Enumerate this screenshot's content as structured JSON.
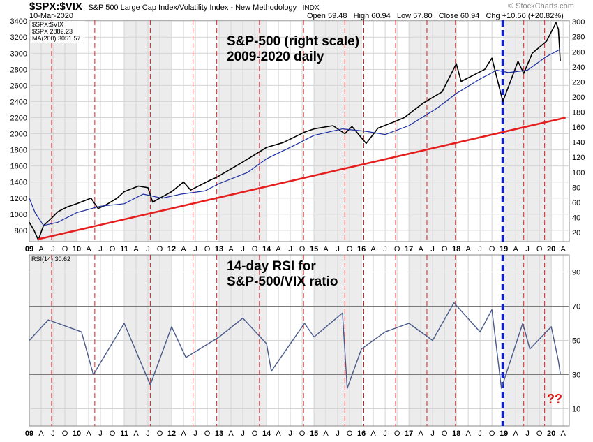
{
  "header": {
    "symbol": "$SPX:$VIX",
    "description": "S&P 500 Large Cap Index/Volatility Index - New Methodology",
    "exchange": "INDX",
    "date": "10-Mar-2020",
    "open_label": "Open",
    "open_value": "59.48",
    "high_label": "High",
    "high_value": "60.94",
    "low_label": "Low",
    "low_value": "57.80",
    "close_label": "Close",
    "close_value": "60.94",
    "chg_label": "Chg",
    "chg_value": "+10.50 (+20.82%)",
    "watermark": "© StockCharts.com"
  },
  "chart_data": [
    {
      "type": "line",
      "panel": "price",
      "legend": [
        {
          "label": "$SPX:$VIX",
          "color": "#000000"
        },
        {
          "label": "$SPX 2882.23",
          "color": "#000000"
        },
        {
          "label": "MA(200) 3051.57",
          "color": "#1a2ea0"
        }
      ],
      "annotations": [
        "S&P-500 (right scale)",
        "2009-2020 daily"
      ],
      "left_axis": {
        "ticks": [
          3400,
          3200,
          3000,
          2800,
          2600,
          2400,
          2200,
          2000,
          1800,
          1600,
          1400,
          1200,
          1000,
          800
        ],
        "range": [
          660,
          3410
        ]
      },
      "right_axis": {
        "ticks": [
          300,
          280,
          260,
          240,
          220,
          200,
          180,
          160,
          140,
          120,
          100,
          80,
          60,
          40,
          20
        ],
        "range": [
          8,
          302
        ]
      },
      "x_labels": [
        "09",
        "A",
        "J",
        "O",
        "10",
        "A",
        "J",
        "O",
        "11",
        "A",
        "J",
        "O",
        "12",
        "A",
        "J",
        "O",
        "13",
        "A",
        "J",
        "O",
        "14",
        "A",
        "J",
        "O",
        "15",
        "A",
        "J",
        "O",
        "16",
        "A",
        "J",
        "O",
        "17",
        "A",
        "J",
        "O",
        "18",
        "A",
        "J",
        "O",
        "19",
        "A",
        "J",
        "O",
        "20",
        "A"
      ],
      "series": [
        {
          "name": "$SPX",
          "color": "#000000",
          "x": [
            2009.0,
            2009.1,
            2009.19,
            2009.3,
            2009.45,
            2009.6,
            2009.8,
            2010.0,
            2010.3,
            2010.45,
            2010.6,
            2010.85,
            2011.0,
            2011.3,
            2011.5,
            2011.6,
            2011.75,
            2012.0,
            2012.25,
            2012.4,
            2012.8,
            2012.95,
            2013.5,
            2014.0,
            2014.35,
            2014.8,
            2015.0,
            2015.4,
            2015.65,
            2015.8,
            2016.1,
            2016.35,
            2016.7,
            2016.9,
            2017.3,
            2017.7,
            2018.0,
            2018.1,
            2018.6,
            2018.75,
            2018.98,
            2019.3,
            2019.42,
            2019.6,
            2019.9,
            2020.1,
            2020.15,
            2020.19
          ],
          "y": [
            900,
            800,
            680,
            860,
            940,
            1030,
            1090,
            1130,
            1200,
            1070,
            1110,
            1200,
            1280,
            1350,
            1330,
            1150,
            1200,
            1280,
            1400,
            1300,
            1420,
            1460,
            1650,
            1830,
            1890,
            2020,
            2060,
            2100,
            2000,
            2090,
            1880,
            2070,
            2150,
            2200,
            2380,
            2520,
            2870,
            2650,
            2800,
            2940,
            2400,
            2900,
            2750,
            3000,
            3150,
            3380,
            3300,
            2900
          ]
        },
        {
          "name": "MA(200)",
          "color": "#1a2ea0",
          "x": [
            2009.0,
            2009.12,
            2009.3,
            2009.6,
            2010.0,
            2010.5,
            2011.0,
            2011.4,
            2011.8,
            2012.2,
            2012.7,
            2013.0,
            2013.6,
            2014.0,
            2014.6,
            2015.0,
            2015.6,
            2016.1,
            2016.5,
            2017.0,
            2017.6,
            2018.0,
            2018.5,
            2018.85,
            2019.1,
            2019.5,
            2019.9,
            2020.19
          ],
          "y": [
            1200,
            1020,
            860,
            900,
            1020,
            1100,
            1130,
            1250,
            1200,
            1250,
            1290,
            1380,
            1520,
            1690,
            1860,
            1980,
            2060,
            2030,
            1990,
            2100,
            2320,
            2500,
            2680,
            2790,
            2760,
            2790,
            2960,
            3050
          ]
        },
        {
          "name": "Trendline",
          "color": "#e51d1d",
          "x": [
            2009.19,
            2020.3
          ],
          "y": [
            690,
            2200
          ]
        }
      ]
    },
    {
      "type": "line",
      "panel": "indicator",
      "legend": [
        {
          "label": "RSI(14) 30.62",
          "color": "#4a5a8a"
        }
      ],
      "annotations": [
        "14-day RSI for",
        "S&P-500/VIX ratio"
      ],
      "ylim": [
        0,
        100
      ],
      "ticks": [
        90,
        70,
        50,
        30,
        10
      ],
      "reference_lines": [
        70,
        30
      ],
      "x_labels": [
        "09",
        "A",
        "J",
        "O",
        "10",
        "A",
        "J",
        "O",
        "11",
        "A",
        "J",
        "O",
        "12",
        "A",
        "J",
        "O",
        "13",
        "A",
        "J",
        "O",
        "14",
        "A",
        "J",
        "O",
        "15",
        "A",
        "J",
        "O",
        "16",
        "A",
        "J",
        "O",
        "17",
        "A",
        "J",
        "O",
        "18",
        "A",
        "J",
        "O",
        "19",
        "A",
        "J",
        "O",
        "20",
        "A"
      ],
      "question_marks": "??",
      "series": [
        {
          "name": "RSI(14)",
          "color": "#4a5a8a",
          "x": [
            2009.0,
            2009.4,
            2010.1,
            2010.35,
            2011.0,
            2011.55,
            2012.0,
            2012.3,
            2013.0,
            2013.5,
            2014.0,
            2014.1,
            2014.8,
            2015.0,
            2015.6,
            2015.7,
            2016.0,
            2016.5,
            2017.0,
            2017.5,
            2017.95,
            2018.5,
            2018.75,
            2018.95,
            2019.4,
            2019.55,
            2020.0,
            2020.15,
            2020.19
          ],
          "y": [
            50,
            62,
            55,
            30,
            60,
            24,
            58,
            40,
            52,
            63,
            48,
            32,
            60,
            52,
            66,
            22,
            45,
            55,
            60,
            50,
            72,
            55,
            68,
            22,
            60,
            45,
            58,
            38,
            30.62
          ]
        }
      ]
    }
  ]
}
